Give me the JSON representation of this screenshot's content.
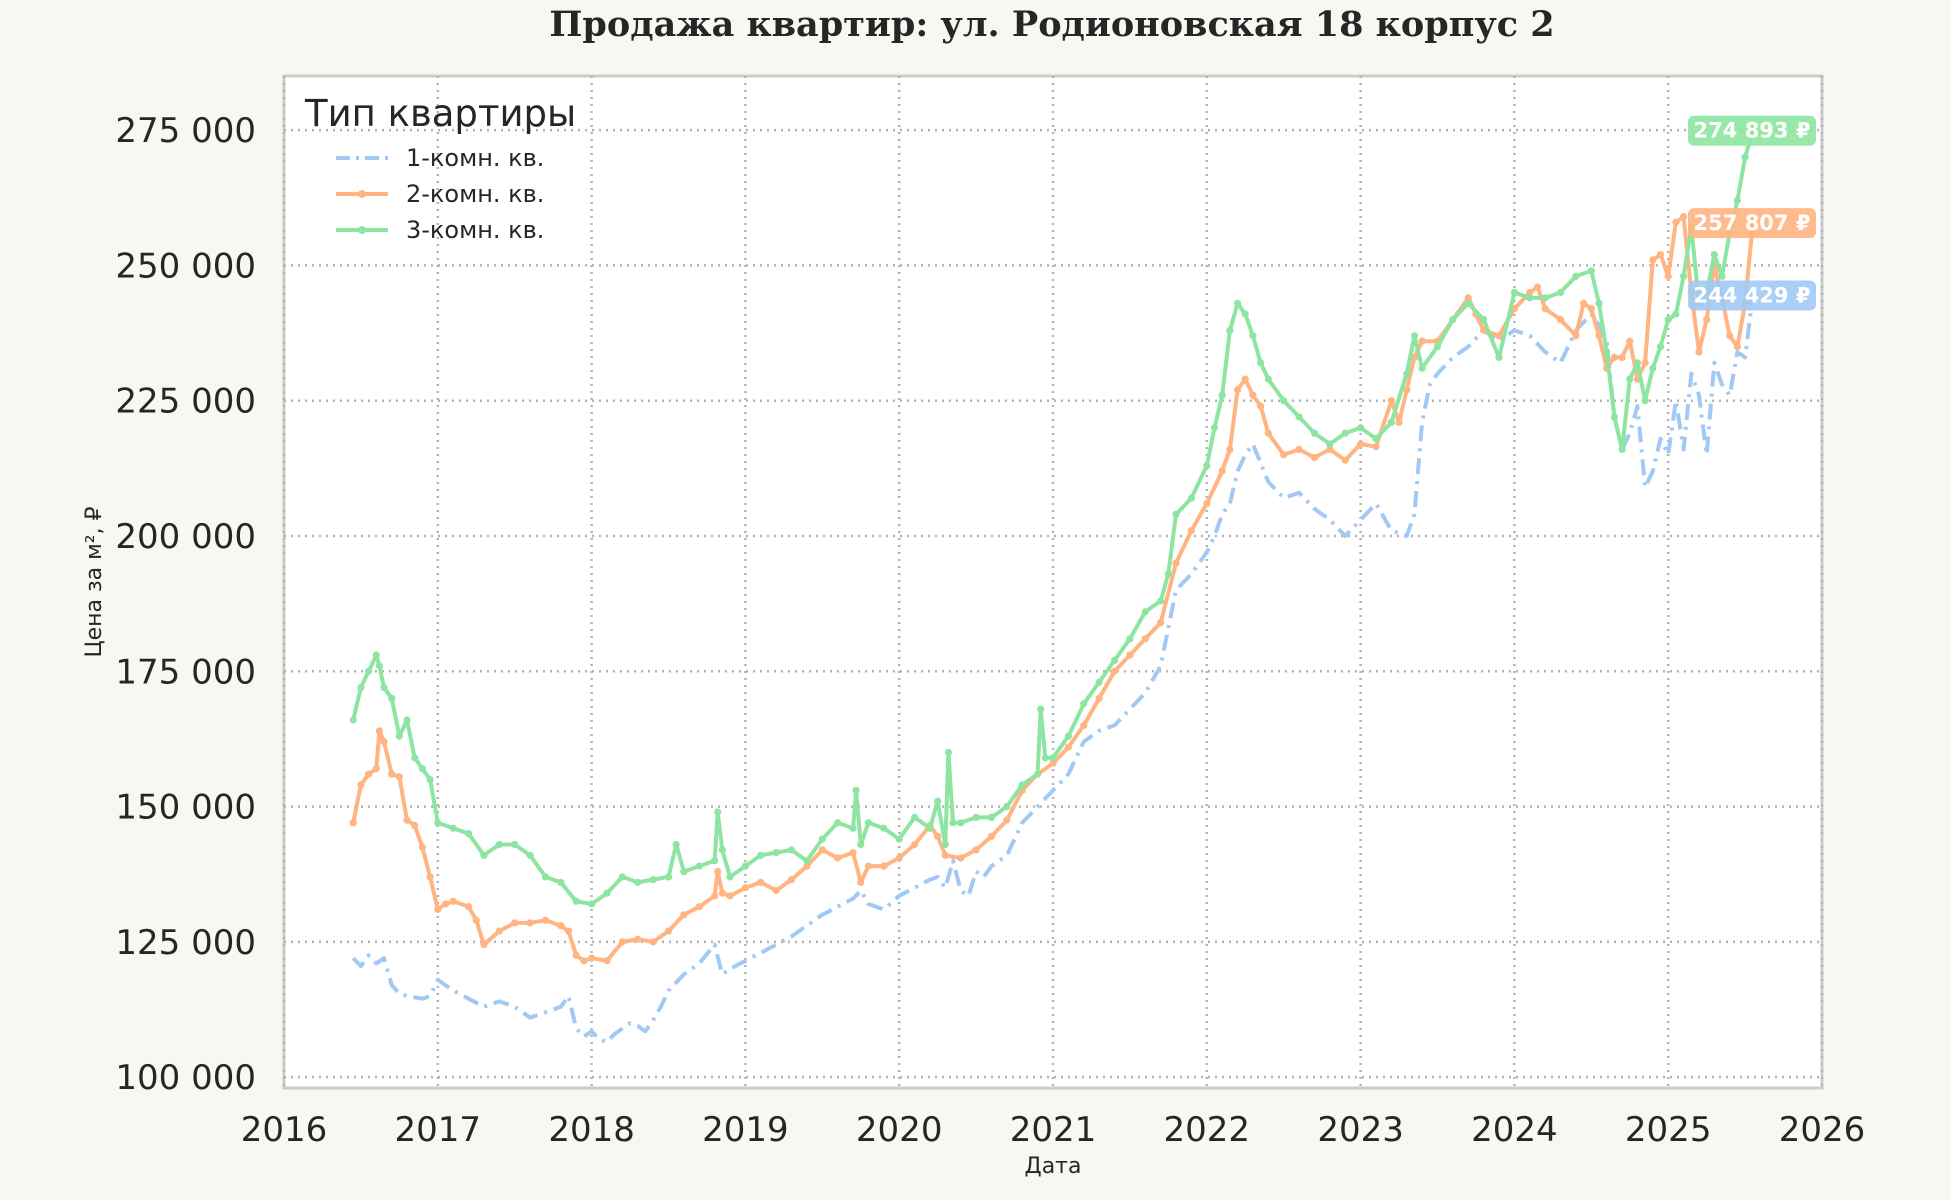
{
  "chart_data": {
    "type": "line",
    "title": "Продажа квартир: ул. Родионовская 18 корпус 2",
    "xlabel": "Дата",
    "ylabel": "Цена за м², ₽",
    "xlim": [
      2016,
      2026
    ],
    "ylim": [
      98000,
      285000
    ],
    "x_ticks": [
      2016,
      2017,
      2018,
      2019,
      2020,
      2021,
      2022,
      2023,
      2024,
      2025,
      2026
    ],
    "y_ticks": [
      100000,
      125000,
      150000,
      175000,
      200000,
      225000,
      250000,
      275000
    ],
    "y_tick_labels": [
      "100 000",
      "125 000",
      "150 000",
      "175 000",
      "200 000",
      "225 000",
      "250 000",
      "275 000"
    ],
    "grid": true,
    "legend": {
      "title": "Тип квартиры",
      "position": "top-left"
    },
    "series": [
      {
        "name": "1-комн. кв.",
        "color": "#a1c9f4",
        "style": "dashdot",
        "end_label": "244 429 ₽",
        "x": [
          2016.45,
          2016.5,
          2016.55,
          2016.6,
          2016.65,
          2016.7,
          2016.75,
          2016.8,
          2016.9,
          2016.95,
          2017.0,
          2017.1,
          2017.2,
          2017.3,
          2017.4,
          2017.5,
          2017.6,
          2017.7,
          2017.8,
          2017.85,
          2017.9,
          2017.95,
          2018.0,
          2018.05,
          2018.1,
          2018.15,
          2018.2,
          2018.25,
          2018.3,
          2018.35,
          2018.4,
          2018.45,
          2018.5,
          2018.55,
          2018.6,
          2018.7,
          2018.8,
          2018.85,
          2018.9,
          2019.0,
          2019.1,
          2019.2,
          2019.3,
          2019.4,
          2019.5,
          2019.6,
          2019.7,
          2019.75,
          2019.8,
          2019.9,
          2020.0,
          2020.1,
          2020.2,
          2020.25,
          2020.3,
          2020.35,
          2020.4,
          2020.45,
          2020.5,
          2020.55,
          2020.6,
          2020.7,
          2020.8,
          2020.9,
          2021.0,
          2021.1,
          2021.2,
          2021.3,
          2021.4,
          2021.5,
          2021.6,
          2021.7,
          2021.75,
          2021.8,
          2021.9,
          2022.0,
          2022.05,
          2022.1,
          2022.15,
          2022.2,
          2022.25,
          2022.3,
          2022.4,
          2022.5,
          2022.6,
          2022.7,
          2022.8,
          2022.9,
          2023.0,
          2023.1,
          2023.2,
          2023.3,
          2023.35,
          2023.4,
          2023.45,
          2023.5,
          2023.6,
          2023.7,
          2023.8,
          2023.9,
          2024.0,
          2024.1,
          2024.2,
          2024.3,
          2024.4,
          2024.5,
          2024.55,
          2024.6,
          2024.65,
          2024.7,
          2024.75,
          2024.8,
          2024.85,
          2024.9,
          2024.95,
          2025.0,
          2025.05,
          2025.1,
          2025.15,
          2025.2,
          2025.25,
          2025.3,
          2025.35,
          2025.4,
          2025.45,
          2025.5,
          2025.55
        ],
        "y": [
          122000,
          120500,
          122500,
          121000,
          122000,
          117000,
          115500,
          115000,
          114500,
          115000,
          118000,
          116000,
          114500,
          113000,
          114000,
          113000,
          111000,
          112000,
          113000,
          115000,
          109000,
          107500,
          108500,
          107000,
          106500,
          108000,
          109000,
          110000,
          109500,
          108500,
          110500,
          113000,
          116000,
          117500,
          119000,
          121000,
          124500,
          119000,
          120000,
          121500,
          123000,
          124500,
          126000,
          128000,
          130000,
          131500,
          133000,
          134500,
          132000,
          131000,
          133500,
          135000,
          136500,
          137000,
          135000,
          140000,
          134500,
          133500,
          138000,
          137000,
          139000,
          141000,
          147000,
          150000,
          153000,
          156000,
          162000,
          164000,
          165000,
          168000,
          171000,
          176000,
          183000,
          190000,
          193000,
          197000,
          200000,
          204000,
          206000,
          212000,
          215000,
          217000,
          210000,
          207000,
          208000,
          205000,
          203000,
          200000,
          203000,
          206000,
          201000,
          200000,
          204000,
          221000,
          228000,
          230000,
          233000,
          235000,
          238000,
          236000,
          238000,
          237000,
          234000,
          232000,
          238000,
          241000,
          239000,
          236000,
          222000,
          216000,
          219000,
          224000,
          209000,
          212000,
          218000,
          215000,
          225000,
          216000,
          230000,
          226000,
          215000,
          232000,
          228000,
          226000,
          234000,
          233000,
          244429
        ]
      },
      {
        "name": "2-комн. кв.",
        "color": "#ffb482",
        "style": "solid-dots",
        "end_label": "257 807 ₽",
        "x": [
          2016.45,
          2016.5,
          2016.55,
          2016.6,
          2016.62,
          2016.65,
          2016.7,
          2016.75,
          2016.8,
          2016.85,
          2016.9,
          2016.95,
          2017.0,
          2017.05,
          2017.1,
          2017.2,
          2017.25,
          2017.3,
          2017.4,
          2017.5,
          2017.6,
          2017.7,
          2017.8,
          2017.85,
          2017.9,
          2017.95,
          2018.0,
          2018.1,
          2018.2,
          2018.3,
          2018.4,
          2018.5,
          2018.6,
          2018.7,
          2018.8,
          2018.82,
          2018.85,
          2018.9,
          2019.0,
          2019.1,
          2019.2,
          2019.3,
          2019.4,
          2019.5,
          2019.6,
          2019.7,
          2019.75,
          2019.8,
          2019.9,
          2020.0,
          2020.1,
          2020.2,
          2020.25,
          2020.3,
          2020.4,
          2020.5,
          2020.6,
          2020.7,
          2020.8,
          2020.9,
          2021.0,
          2021.1,
          2021.2,
          2021.3,
          2021.4,
          2021.5,
          2021.6,
          2021.7,
          2021.8,
          2021.9,
          2022.0,
          2022.1,
          2022.15,
          2022.2,
          2022.25,
          2022.3,
          2022.35,
          2022.4,
          2022.5,
          2022.6,
          2022.7,
          2022.8,
          2022.9,
          2023.0,
          2023.1,
          2023.2,
          2023.25,
          2023.3,
          2023.35,
          2023.4,
          2023.5,
          2023.6,
          2023.7,
          2023.75,
          2023.8,
          2023.9,
          2024.0,
          2024.1,
          2024.15,
          2024.2,
          2024.3,
          2024.4,
          2024.45,
          2024.5,
          2024.55,
          2024.6,
          2024.65,
          2024.7,
          2024.75,
          2024.8,
          2024.85,
          2024.9,
          2024.95,
          2025.0,
          2025.05,
          2025.1,
          2025.15,
          2025.2,
          2025.25,
          2025.3,
          2025.35,
          2025.4,
          2025.45,
          2025.5,
          2025.55
        ],
        "y": [
          147000,
          154000,
          156000,
          157000,
          164000,
          162000,
          156000,
          155500,
          147500,
          146500,
          142500,
          137000,
          131000,
          132000,
          132500,
          131500,
          129000,
          124500,
          127000,
          128500,
          128500,
          129000,
          128000,
          127000,
          122500,
          121500,
          122000,
          121500,
          125000,
          125500,
          125000,
          127000,
          130000,
          131500,
          133500,
          138000,
          134000,
          133500,
          135000,
          136000,
          134500,
          136500,
          139000,
          142000,
          140500,
          141500,
          136000,
          139000,
          139000,
          140500,
          143000,
          146500,
          144500,
          141000,
          140500,
          142000,
          144500,
          147500,
          153000,
          156000,
          158000,
          161000,
          165000,
          170000,
          175000,
          178000,
          181000,
          184000,
          195000,
          201000,
          206000,
          212000,
          216000,
          227000,
          229000,
          226000,
          224000,
          219000,
          215000,
          216000,
          214500,
          216000,
          214000,
          217000,
          216500,
          225000,
          221000,
          227000,
          233000,
          236000,
          236000,
          240000,
          244000,
          241000,
          238000,
          237000,
          242000,
          245000,
          246000,
          242000,
          240000,
          237000,
          243000,
          242000,
          237000,
          231000,
          233000,
          233000,
          236000,
          229000,
          232000,
          251000,
          252000,
          248000,
          258000,
          259000,
          245000,
          234000,
          240000,
          250000,
          244000,
          237000,
          235000,
          243000,
          257807
        ]
      },
      {
        "name": "3-комн. кв.",
        "color": "#8de5a1",
        "style": "solid-dots",
        "end_label": "274 893 ₽",
        "x": [
          2016.45,
          2016.5,
          2016.55,
          2016.6,
          2016.62,
          2016.65,
          2016.7,
          2016.75,
          2016.8,
          2016.85,
          2016.9,
          2016.95,
          2017.0,
          2017.1,
          2017.2,
          2017.3,
          2017.4,
          2017.5,
          2017.6,
          2017.7,
          2017.8,
          2017.9,
          2018.0,
          2018.1,
          2018.2,
          2018.3,
          2018.4,
          2018.5,
          2018.55,
          2018.6,
          2018.7,
          2018.8,
          2018.82,
          2018.85,
          2018.9,
          2019.0,
          2019.1,
          2019.2,
          2019.3,
          2019.4,
          2019.5,
          2019.6,
          2019.7,
          2019.72,
          2019.75,
          2019.8,
          2019.9,
          2020.0,
          2020.1,
          2020.2,
          2020.25,
          2020.3,
          2020.32,
          2020.35,
          2020.4,
          2020.5,
          2020.6,
          2020.7,
          2020.8,
          2020.9,
          2020.92,
          2020.95,
          2021.0,
          2021.1,
          2021.2,
          2021.3,
          2021.4,
          2021.5,
          2021.6,
          2021.7,
          2021.75,
          2021.8,
          2021.9,
          2022.0,
          2022.05,
          2022.1,
          2022.15,
          2022.2,
          2022.25,
          2022.3,
          2022.35,
          2022.4,
          2022.5,
          2022.6,
          2022.7,
          2022.8,
          2022.9,
          2023.0,
          2023.1,
          2023.2,
          2023.3,
          2023.35,
          2023.4,
          2023.5,
          2023.6,
          2023.7,
          2023.8,
          2023.9,
          2024.0,
          2024.1,
          2024.2,
          2024.3,
          2024.4,
          2024.5,
          2024.55,
          2024.6,
          2024.65,
          2024.7,
          2024.75,
          2024.8,
          2024.85,
          2024.9,
          2024.95,
          2025.0,
          2025.05,
          2025.1,
          2025.15,
          2025.2,
          2025.25,
          2025.3,
          2025.35,
          2025.4,
          2025.45,
          2025.5,
          2025.55
        ],
        "y": [
          166000,
          172000,
          175000,
          178000,
          176000,
          172000,
          170000,
          163000,
          166000,
          159000,
          157000,
          155000,
          147000,
          146000,
          145000,
          141000,
          143000,
          143000,
          141000,
          137000,
          136000,
          132500,
          132000,
          134000,
          137000,
          136000,
          136500,
          137000,
          143000,
          138000,
          139000,
          140000,
          149000,
          142000,
          137000,
          139000,
          141000,
          141500,
          142000,
          140000,
          144000,
          147000,
          146000,
          153000,
          143000,
          147000,
          146000,
          144000,
          148000,
          146000,
          151000,
          143000,
          160000,
          147000,
          147000,
          148000,
          148000,
          150000,
          154000,
          156000,
          168000,
          159000,
          159000,
          163000,
          169000,
          173000,
          177000,
          181000,
          186000,
          188000,
          193000,
          204000,
          207000,
          213000,
          220000,
          226000,
          238000,
          243000,
          241000,
          237000,
          232000,
          229000,
          225000,
          222000,
          219000,
          217000,
          219000,
          220000,
          218000,
          221000,
          230000,
          237000,
          231000,
          235000,
          240000,
          243000,
          240000,
          233000,
          245000,
          244000,
          244000,
          245000,
          248000,
          249000,
          243000,
          234000,
          222000,
          216000,
          229000,
          232000,
          225000,
          231000,
          235000,
          240000,
          241000,
          248000,
          257000,
          243000,
          245000,
          252000,
          248000,
          256000,
          262000,
          270000,
          274893
        ]
      }
    ]
  }
}
